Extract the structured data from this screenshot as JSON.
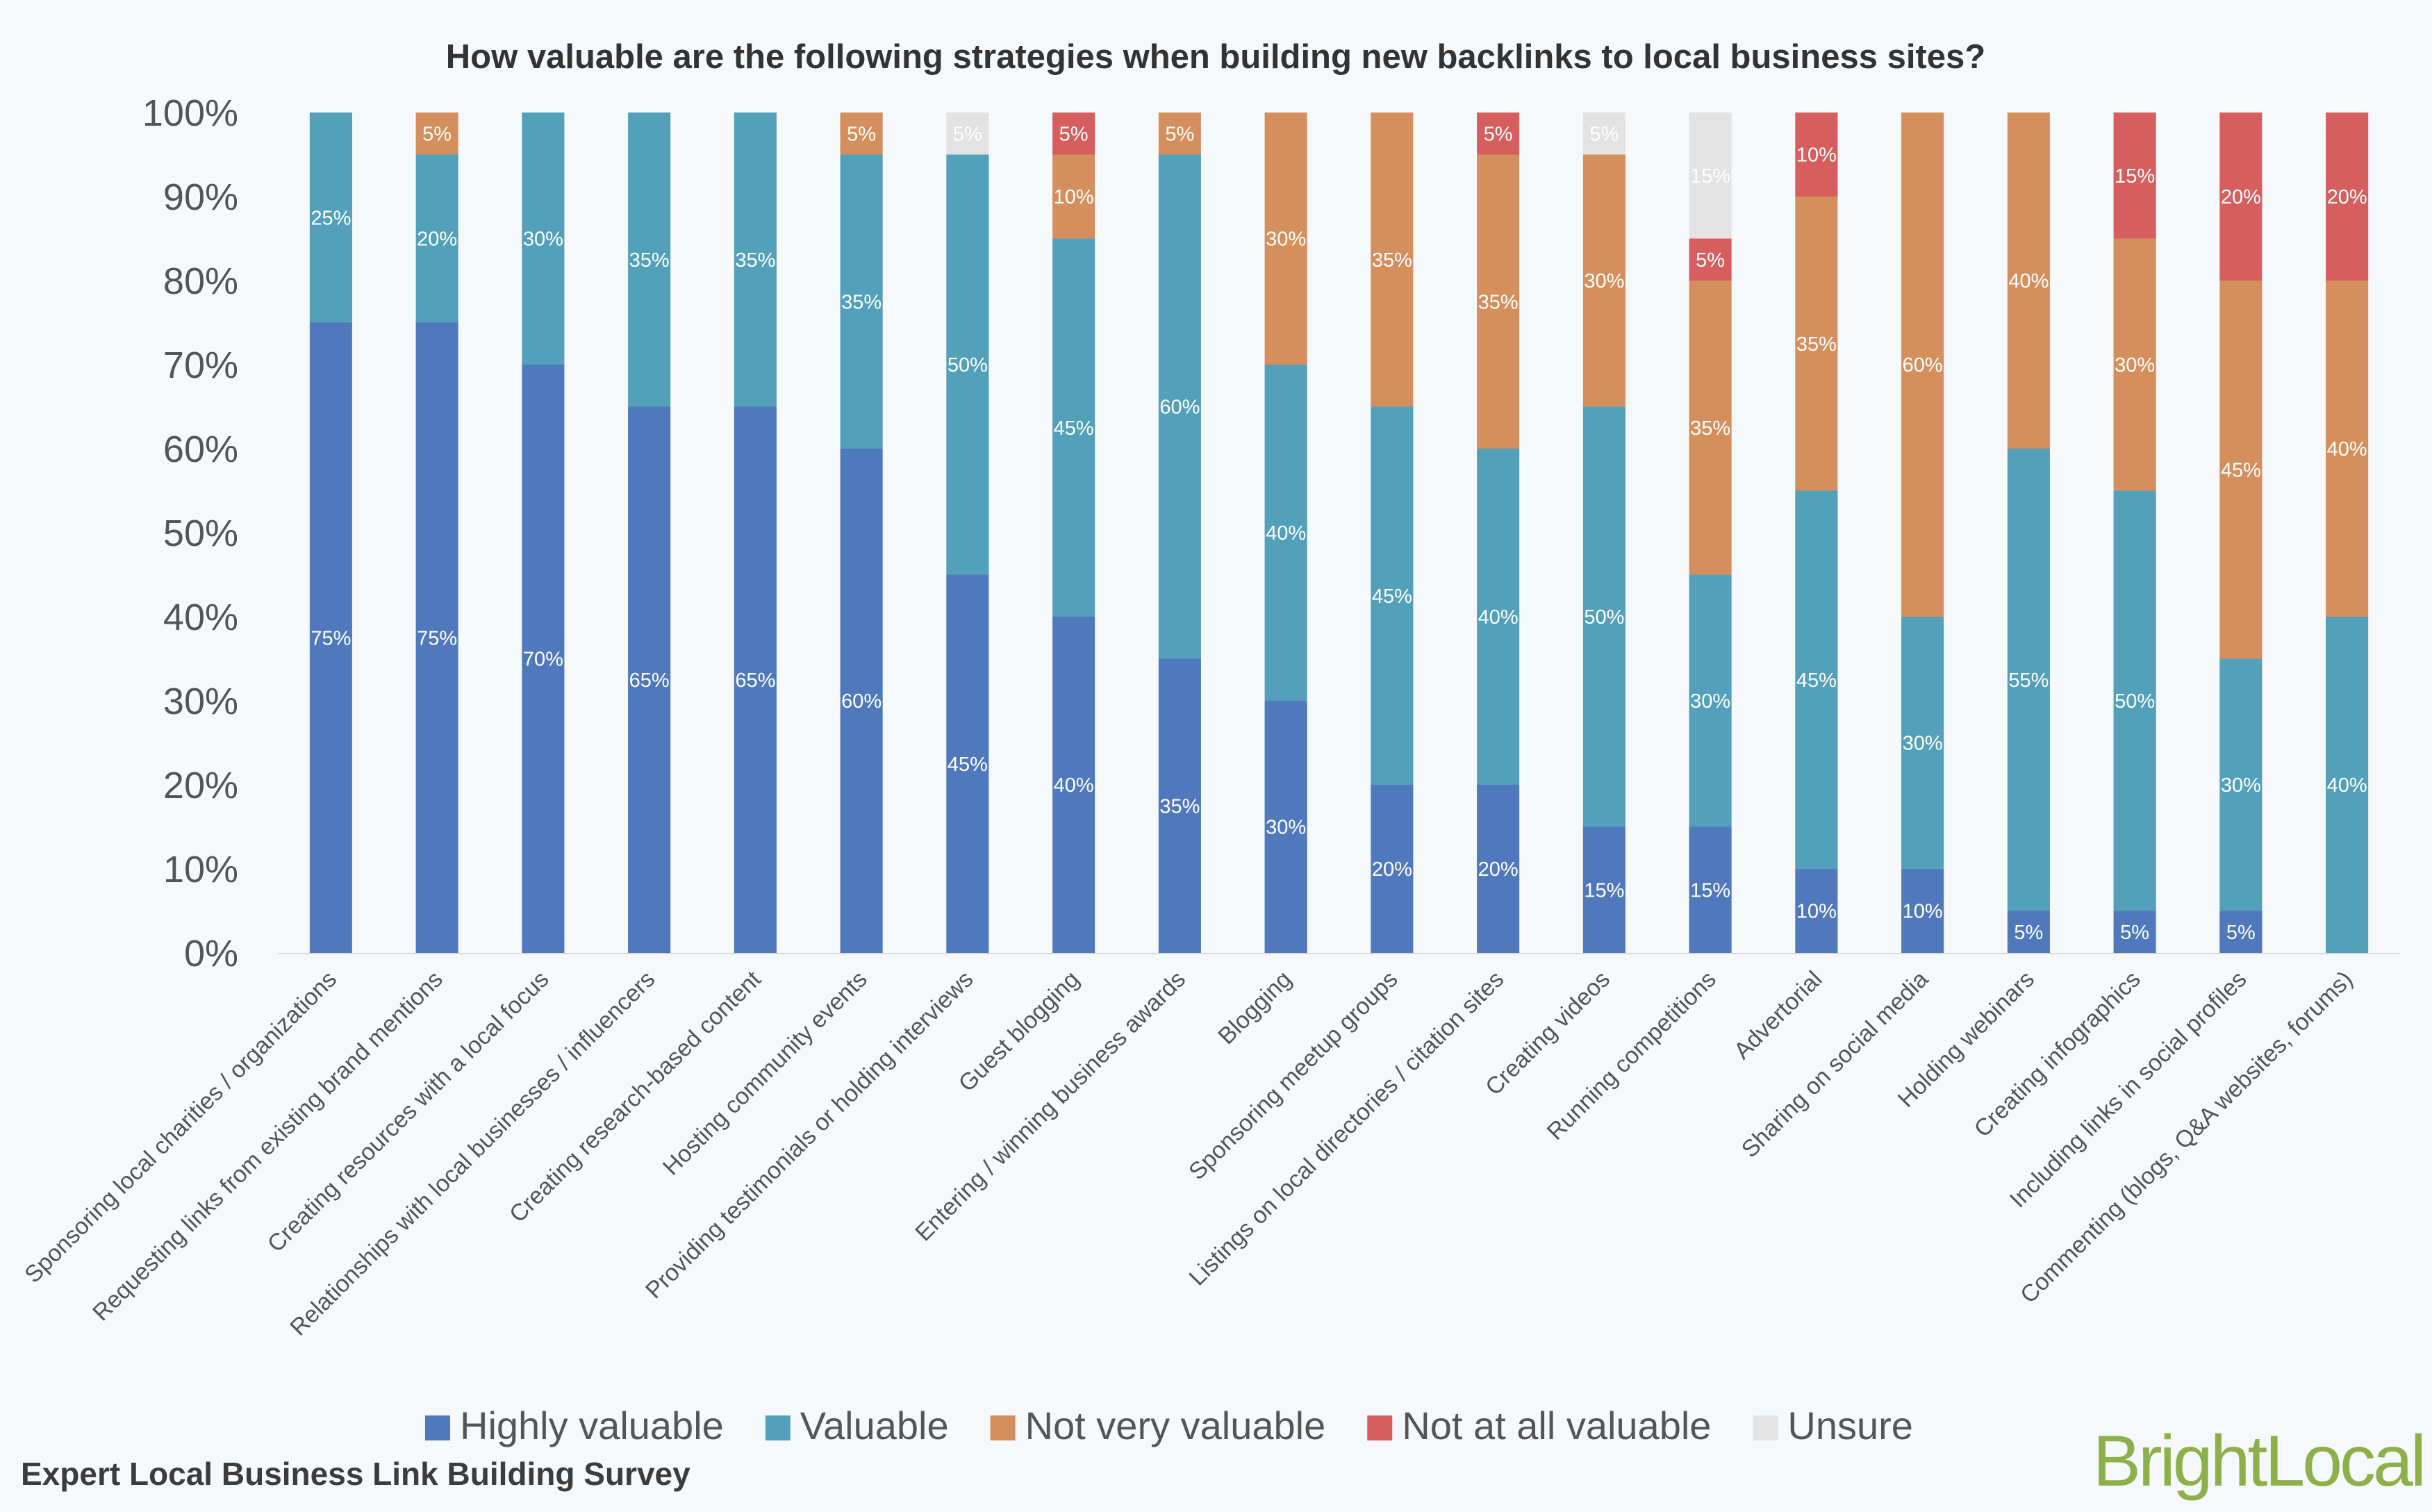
{
  "footer": {
    "survey_title": "Expert Local Business Link Building Survey",
    "brand": "BrightLocal"
  },
  "chart_data": {
    "type": "bar",
    "stacked": true,
    "title": "How valuable are the following strategies when building new backlinks to local business sites?",
    "xlabel": "",
    "ylabel": "",
    "ylim": [
      0,
      100
    ],
    "y_ticks": [
      "0%",
      "10%",
      "20%",
      "30%",
      "40%",
      "50%",
      "60%",
      "70%",
      "80%",
      "90%",
      "100%"
    ],
    "legend_position": "bottom",
    "grid": false,
    "categories": [
      "Sponsoring local charities / organizations",
      "Requesting links from existing brand mentions",
      "Creating resources with a local focus",
      "Relationships with local businesses / influencers",
      "Creating research-based content",
      "Hosting community events",
      "Providing testimonials or holding interviews",
      "Guest blogging",
      "Entering / winning business awards",
      "Blogging",
      "Sponsoring meetup groups",
      "Listings on local directories / citation sites",
      "Creating videos",
      "Running competitions",
      "Advertorial",
      "Sharing on social media",
      "Holding webinars",
      "Creating infographics",
      "Including links in social profiles",
      "Commenting (blogs, Q&A websites, forums)"
    ],
    "series": [
      {
        "name": "Highly valuable",
        "color": "#5079bd",
        "values": [
          75,
          75,
          70,
          65,
          65,
          60,
          45,
          40,
          35,
          30,
          20,
          20,
          15,
          15,
          10,
          10,
          5,
          5,
          5,
          0
        ]
      },
      {
        "name": "Valuable",
        "color": "#52a0b9",
        "values": [
          25,
          20,
          30,
          35,
          35,
          35,
          50,
          45,
          60,
          40,
          45,
          40,
          50,
          30,
          45,
          30,
          55,
          50,
          30,
          40
        ]
      },
      {
        "name": "Not very valuable",
        "color": "#d48f5c",
        "values": [
          0,
          5,
          0,
          0,
          0,
          5,
          0,
          10,
          5,
          30,
          35,
          35,
          30,
          35,
          35,
          60,
          40,
          30,
          45,
          40
        ]
      },
      {
        "name": "Not at all valuable",
        "color": "#d65e5e",
        "values": [
          0,
          0,
          0,
          0,
          0,
          0,
          0,
          5,
          0,
          0,
          0,
          5,
          0,
          5,
          10,
          0,
          0,
          15,
          20,
          20
        ]
      },
      {
        "name": "Unsure",
        "color": "#e3e3e3",
        "values": [
          0,
          0,
          0,
          0,
          0,
          0,
          5,
          0,
          0,
          0,
          0,
          0,
          5,
          15,
          0,
          0,
          0,
          0,
          0,
          0
        ]
      }
    ]
  }
}
